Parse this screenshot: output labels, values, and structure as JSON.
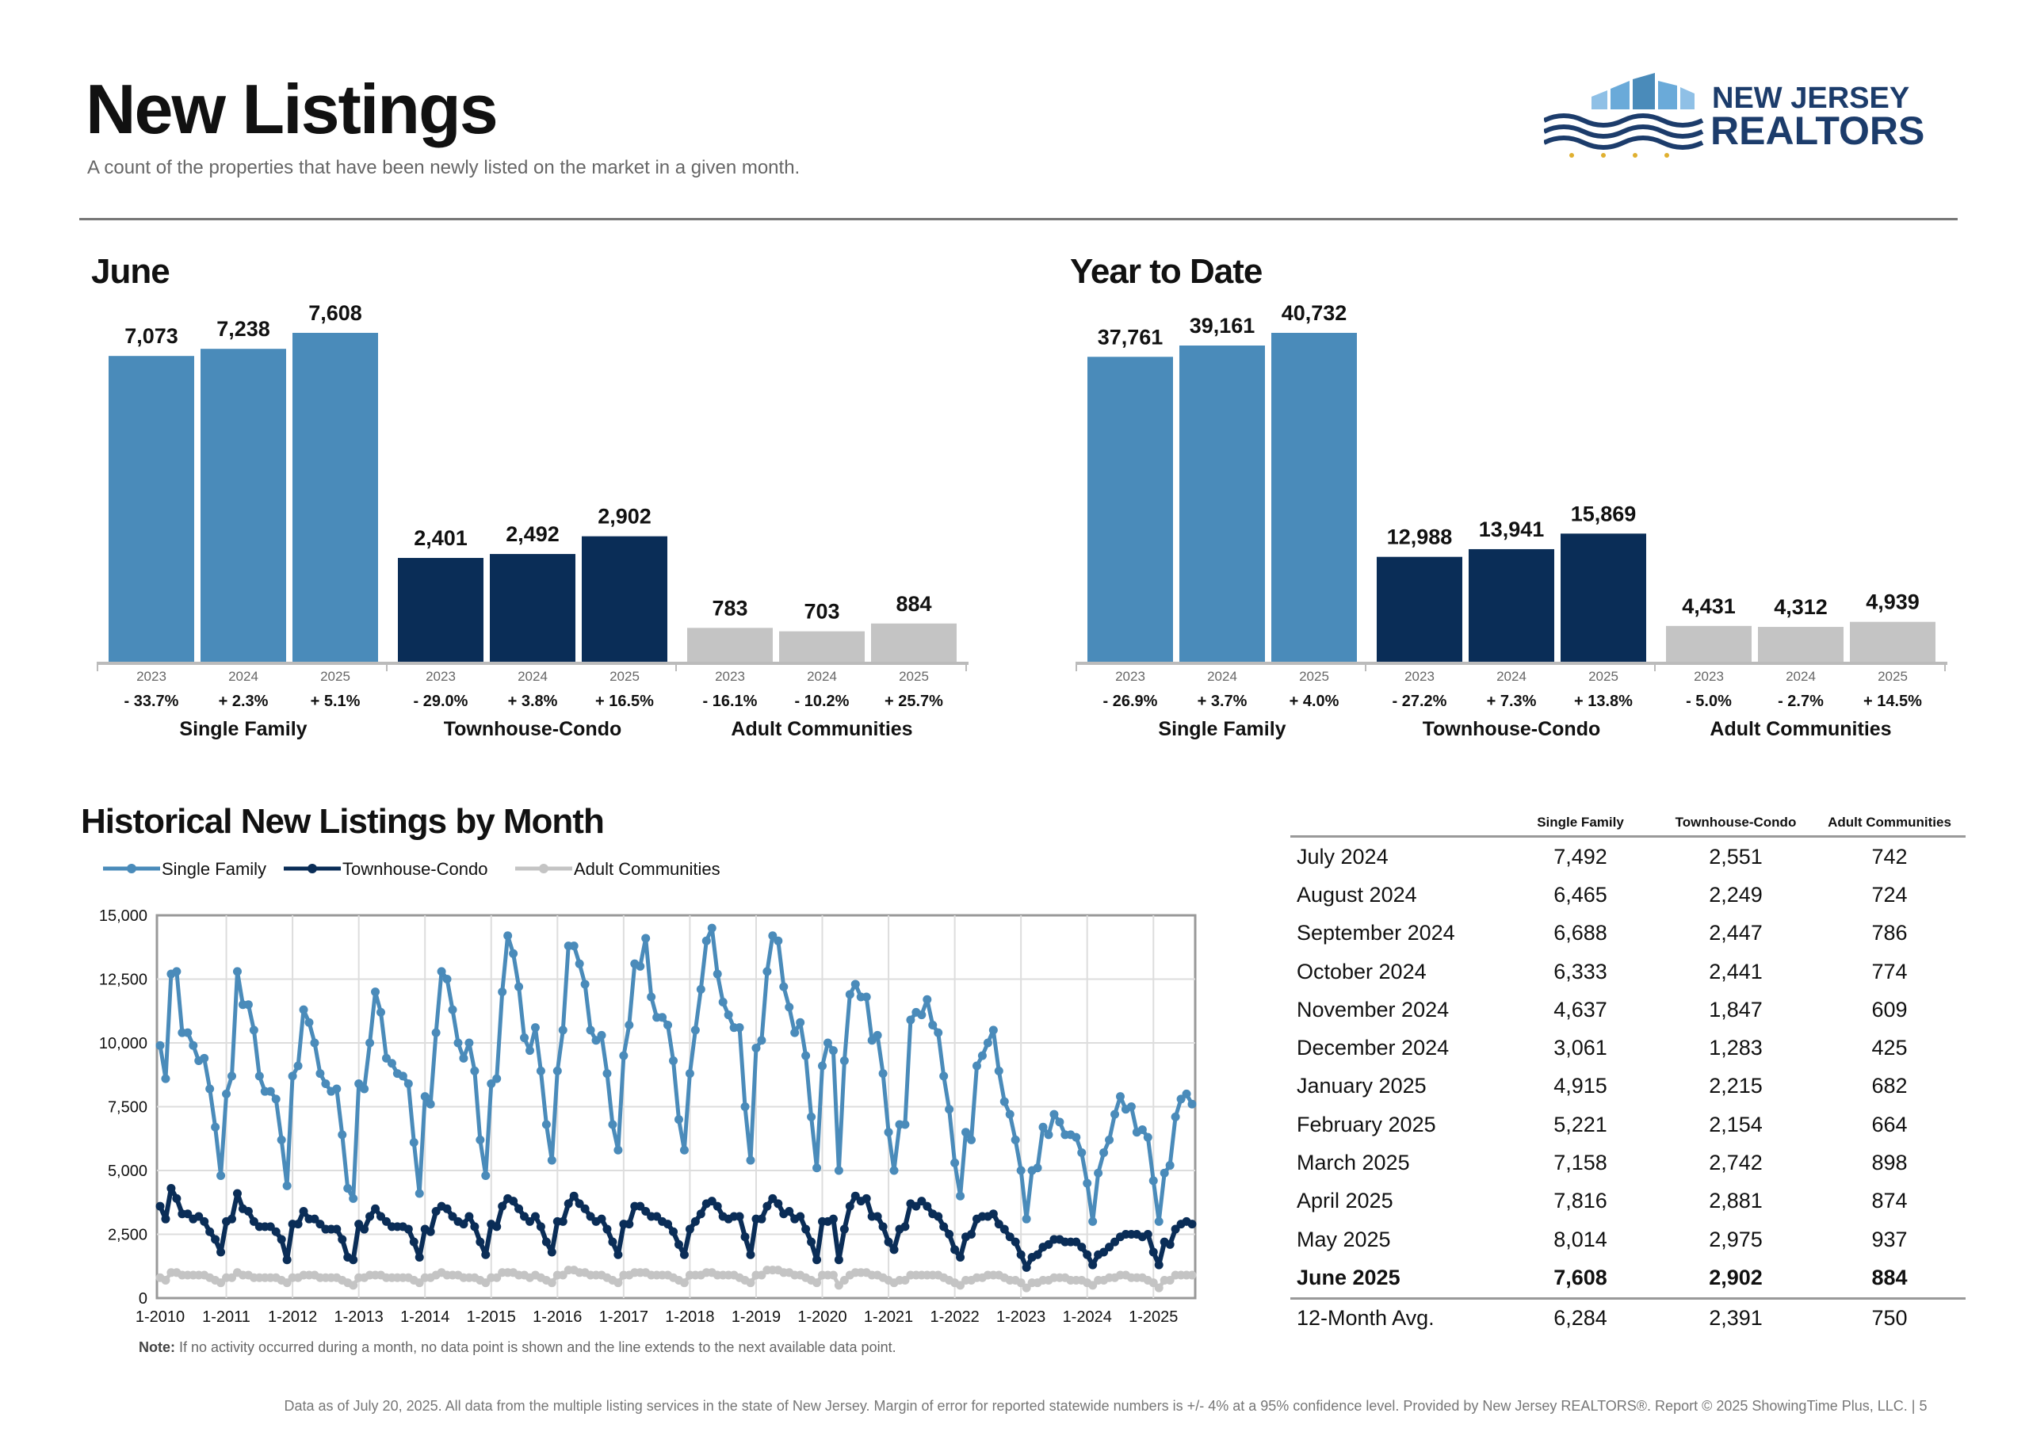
{
  "header": {
    "title": "New Listings",
    "subtitle": "A count of the properties that have been newly listed on the market in a given month.",
    "logo_line1": "NEW JERSEY",
    "logo_line2": "REALTORS"
  },
  "sections": {
    "june_title": "June",
    "ytd_title": "Year to Date",
    "hist_title": "Historical New Listings by Month"
  },
  "colors": {
    "single_family": "#4a8bba",
    "townhouse_condo": "#0a2d57",
    "adult_communities": "#c4c4c4"
  },
  "chart_data": [
    {
      "type": "bar",
      "title": "June",
      "groups": [
        "Single Family",
        "Townhouse-Condo",
        "Adult Communities"
      ],
      "categories": [
        "2023",
        "2024",
        "2025"
      ],
      "series": [
        {
          "name": "Single Family",
          "values": [
            7073,
            7238,
            7608
          ],
          "labels": [
            "7,073",
            "7,238",
            "7,608"
          ],
          "changes": [
            "- 33.7%",
            "+ 2.3%",
            "+ 5.1%"
          ]
        },
        {
          "name": "Townhouse-Condo",
          "values": [
            2401,
            2492,
            2902
          ],
          "labels": [
            "2,401",
            "2,492",
            "2,902"
          ],
          "changes": [
            "- 29.0%",
            "+ 3.8%",
            "+ 16.5%"
          ]
        },
        {
          "name": "Adult Communities",
          "values": [
            783,
            703,
            884
          ],
          "labels": [
            "783",
            "703",
            "884"
          ],
          "changes": [
            "- 16.1%",
            "- 10.2%",
            "+ 25.7%"
          ]
        }
      ]
    },
    {
      "type": "bar",
      "title": "Year to Date",
      "groups": [
        "Single Family",
        "Townhouse-Condo",
        "Adult Communities"
      ],
      "categories": [
        "2023",
        "2024",
        "2025"
      ],
      "series": [
        {
          "name": "Single Family",
          "values": [
            37761,
            39161,
            40732
          ],
          "labels": [
            "37,761",
            "39,161",
            "40,732"
          ],
          "changes": [
            "- 26.9%",
            "+ 3.7%",
            "+ 4.0%"
          ]
        },
        {
          "name": "Townhouse-Condo",
          "values": [
            12988,
            13941,
            15869
          ],
          "labels": [
            "12,988",
            "13,941",
            "15,869"
          ],
          "changes": [
            "- 27.2%",
            "+ 7.3%",
            "+ 13.8%"
          ]
        },
        {
          "name": "Adult Communities",
          "values": [
            4431,
            4312,
            4939
          ],
          "labels": [
            "4,431",
            "4,312",
            "4,939"
          ],
          "changes": [
            "- 5.0%",
            "- 2.7%",
            "+ 14.5%"
          ]
        }
      ]
    },
    {
      "type": "line",
      "title": "Historical New Listings by Month",
      "x_start": "2010-01",
      "x_ticks": [
        "1-2010",
        "1-2011",
        "1-2012",
        "1-2013",
        "1-2014",
        "1-2015",
        "1-2016",
        "1-2017",
        "1-2018",
        "1-2019",
        "1-2020",
        "1-2021",
        "1-2022",
        "1-2023",
        "1-2024",
        "1-2025"
      ],
      "y_ticks": [
        "0",
        "2,500",
        "5,000",
        "7,500",
        "10,000",
        "12,500",
        "15,000"
      ],
      "ylim": [
        0,
        15000
      ],
      "grid": true,
      "legend_position": "top-left",
      "series": [
        {
          "name": "Single Family",
          "values": [
            9900,
            8600,
            12700,
            12800,
            10400,
            10400,
            9900,
            9300,
            9400,
            8200,
            6700,
            4800,
            8000,
            8700,
            12800,
            11500,
            11500,
            10500,
            8700,
            8100,
            8100,
            7800,
            6200,
            4400,
            8700,
            9100,
            11300,
            10800,
            10000,
            8800,
            8400,
            8100,
            8200,
            6400,
            4300,
            3900,
            8400,
            8200,
            10000,
            12000,
            11200,
            9400,
            9200,
            8800,
            8700,
            8400,
            6100,
            4100,
            7900,
            7600,
            10400,
            12800,
            12500,
            11300,
            10000,
            9400,
            10000,
            8900,
            6200,
            4800,
            8400,
            8600,
            12000,
            14200,
            13500,
            12200,
            10200,
            9700,
            10600,
            8900,
            6800,
            5400,
            8900,
            10500,
            13800,
            13800,
            13100,
            12300,
            10500,
            10100,
            10300,
            8800,
            6800,
            5800,
            9500,
            10700,
            13100,
            13000,
            14100,
            11800,
            11000,
            11000,
            10700,
            9300,
            7000,
            5800,
            8800,
            10500,
            12100,
            14000,
            14500,
            12700,
            11600,
            11100,
            10600,
            10600,
            7500,
            5400,
            9800,
            10100,
            12800,
            14200,
            14000,
            12200,
            11400,
            10400,
            10800,
            9500,
            7100,
            5100,
            9100,
            10000,
            9700,
            5000,
            9300,
            11900,
            12300,
            11800,
            11800,
            10100,
            10300,
            8800,
            6500,
            5000,
            6800,
            6800,
            10900,
            11200,
            11100,
            11700,
            10700,
            10400,
            8700,
            7400,
            5300,
            4000,
            6500,
            6200,
            9100,
            9500,
            10000,
            10500,
            8900,
            7700,
            7200,
            6200,
            5000,
            3100,
            5000,
            5100,
            6700,
            6400,
            7200,
            6900,
            6400,
            6400,
            6300,
            5700,
            4500,
            3000,
            4900,
            5700,
            6200,
            7200,
            7900,
            7400,
            7500,
            6500,
            6600,
            6300,
            4600,
            3000,
            4900,
            5200,
            7100,
            7800,
            8000,
            7600
          ]
        },
        {
          "name": "Townhouse-Condo",
          "values": [
            3600,
            3100,
            4300,
            3900,
            3300,
            3300,
            3100,
            3200,
            3000,
            2600,
            2300,
            1800,
            3000,
            3100,
            4100,
            3500,
            3400,
            3000,
            2800,
            2800,
            2800,
            2600,
            2300,
            1500,
            2900,
            2900,
            3400,
            3100,
            3100,
            2900,
            2700,
            2700,
            2700,
            2300,
            1600,
            1500,
            2900,
            2700,
            3200,
            3500,
            3200,
            3000,
            2800,
            2800,
            2800,
            2700,
            2200,
            1600,
            2700,
            2600,
            3400,
            3600,
            3500,
            3200,
            3000,
            2900,
            3200,
            2800,
            2200,
            1700,
            2900,
            2800,
            3600,
            3900,
            3800,
            3500,
            3200,
            3000,
            3200,
            2800,
            2200,
            1800,
            3000,
            3000,
            3700,
            4000,
            3700,
            3500,
            3200,
            3000,
            3100,
            2700,
            2200,
            1700,
            2900,
            2900,
            3600,
            3600,
            3400,
            3200,
            3200,
            3000,
            2900,
            2600,
            2100,
            1700,
            2700,
            3000,
            3300,
            3700,
            3800,
            3600,
            3200,
            3100,
            3200,
            3200,
            2400,
            1700,
            3100,
            3100,
            3600,
            3900,
            3700,
            3300,
            3400,
            3100,
            3200,
            2700,
            2200,
            1500,
            3000,
            3000,
            3100,
            1500,
            2700,
            3600,
            4000,
            3800,
            3900,
            3200,
            3200,
            2800,
            2200,
            1900,
            2700,
            2800,
            3700,
            3600,
            3800,
            3600,
            3300,
            3200,
            2800,
            2500,
            1900,
            1600,
            2400,
            2500,
            3100,
            3200,
            3200,
            3300,
            2900,
            2700,
            2400,
            2200,
            1700,
            1200,
            1600,
            1700,
            2000,
            2100,
            2300,
            2300,
            2200,
            2200,
            2200,
            2000,
            1700,
            1300,
            1700,
            1800,
            2000,
            2200,
            2400,
            2500,
            2500,
            2500,
            2400,
            2500,
            1800,
            1300,
            2200,
            2100,
            2700,
            2900,
            3000,
            2900
          ]
        },
        {
          "name": "Adult Communities",
          "values": [
            800,
            700,
            1000,
            1000,
            900,
            900,
            900,
            900,
            900,
            800,
            700,
            600,
            800,
            800,
            1000,
            900,
            900,
            800,
            800,
            800,
            800,
            800,
            700,
            600,
            800,
            800,
            900,
            900,
            900,
            800,
            800,
            800,
            800,
            700,
            600,
            500,
            800,
            800,
            900,
            900,
            900,
            800,
            800,
            800,
            800,
            800,
            700,
            600,
            800,
            800,
            900,
            1000,
            900,
            900,
            900,
            800,
            800,
            800,
            700,
            600,
            800,
            800,
            1000,
            1000,
            1000,
            900,
            900,
            800,
            900,
            800,
            700,
            600,
            900,
            900,
            1100,
            1100,
            1000,
            1000,
            900,
            900,
            900,
            800,
            700,
            600,
            900,
            900,
            1000,
            1000,
            1000,
            900,
            900,
            900,
            900,
            800,
            700,
            600,
            900,
            900,
            900,
            1000,
            1000,
            900,
            900,
            900,
            900,
            800,
            700,
            600,
            900,
            900,
            1100,
            1100,
            1100,
            1000,
            1000,
            900,
            900,
            800,
            700,
            600,
            900,
            900,
            900,
            500,
            700,
            900,
            1000,
            1000,
            1000,
            900,
            900,
            800,
            700,
            600,
            700,
            700,
            900,
            900,
            900,
            900,
            900,
            900,
            800,
            700,
            600,
            500,
            700,
            700,
            800,
            800,
            900,
            900,
            900,
            800,
            700,
            700,
            600,
            400,
            600,
            600,
            700,
            700,
            800,
            800,
            800,
            700,
            700,
            700,
            600,
            500,
            700,
            700,
            800,
            800,
            900,
            900,
            800,
            800,
            800,
            700,
            600,
            400,
            700,
            700,
            900,
            900,
            900,
            900
          ]
        }
      ]
    }
  ],
  "legend": [
    "Single Family",
    "Townhouse-Condo",
    "Adult Communities"
  ],
  "table": {
    "headers": [
      "Single Family",
      "Townhouse-Condo",
      "Adult Communities"
    ],
    "rows": [
      {
        "month": "July 2024",
        "sf": "7,492",
        "tc": "2,551",
        "ac": "742"
      },
      {
        "month": "August 2024",
        "sf": "6,465",
        "tc": "2,249",
        "ac": "724"
      },
      {
        "month": "September 2024",
        "sf": "6,688",
        "tc": "2,447",
        "ac": "786"
      },
      {
        "month": "October 2024",
        "sf": "6,333",
        "tc": "2,441",
        "ac": "774"
      },
      {
        "month": "November 2024",
        "sf": "4,637",
        "tc": "1,847",
        "ac": "609"
      },
      {
        "month": "December 2024",
        "sf": "3,061",
        "tc": "1,283",
        "ac": "425"
      },
      {
        "month": "January 2025",
        "sf": "4,915",
        "tc": "2,215",
        "ac": "682"
      },
      {
        "month": "February 2025",
        "sf": "5,221",
        "tc": "2,154",
        "ac": "664"
      },
      {
        "month": "March 2025",
        "sf": "7,158",
        "tc": "2,742",
        "ac": "898"
      },
      {
        "month": "April 2025",
        "sf": "7,816",
        "tc": "2,881",
        "ac": "874"
      },
      {
        "month": "May 2025",
        "sf": "8,014",
        "tc": "2,975",
        "ac": "937"
      },
      {
        "month": "June 2025",
        "sf": "7,608",
        "tc": "2,902",
        "ac": "884"
      }
    ],
    "avg": {
      "month": "12-Month Avg.",
      "sf": "6,284",
      "tc": "2,391",
      "ac": "750"
    }
  },
  "note_label": "Note:",
  "note_text": "If no activity occurred during a month, no data point is shown and the line extends to the next available data point.",
  "footer": "Data as of July 20, 2025. All data from the multiple listing services in the state of New Jersey. Margin of error for reported statewide numbers is +/- 4% at a 95% confidence level. Provided by New Jersey REALTORS®. Report © 2025 ShowingTime Plus, LLC. | 5"
}
